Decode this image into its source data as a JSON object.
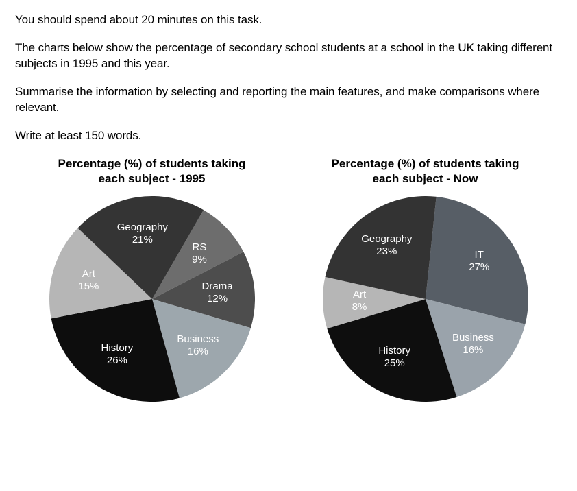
{
  "instructions": {
    "p1": "You should spend about 20 minutes on this task.",
    "p2": "The charts below show the percentage of secondary school students at a school in the UK taking different subjects in 1995 and this year.",
    "p3": "Summarise the information by selecting and reporting the main features, and make comparisons where relevant.",
    "p4": "Write at least 150 words."
  },
  "chart1": {
    "type": "pie",
    "title_line1": "Percentage (%) of students taking",
    "title_line2": "each subject - 1995",
    "radius": 150,
    "start_angle_deg": -60,
    "label_radius_factor": 0.64,
    "background": "#ffffff",
    "label_fontsize": 15,
    "slices": [
      {
        "name": "RS",
        "value": 9,
        "pct": "9%",
        "color": "#6d6d6d",
        "text_color": "#ffffff"
      },
      {
        "name": "Drama",
        "value": 12,
        "pct": "12%",
        "color": "#4d4d4d",
        "text_color": "#ffffff"
      },
      {
        "name": "Business",
        "value": 16,
        "pct": "16%",
        "color": "#9da7ad",
        "text_color": "#ffffff"
      },
      {
        "name": "History",
        "value": 26,
        "pct": "26%",
        "color": "#0d0d0d",
        "text_color": "#ffffff"
      },
      {
        "name": "Art",
        "value": 15,
        "pct": "15%",
        "color": "#b6b6b6",
        "text_color": "#ffffff"
      },
      {
        "name": "Geography",
        "value": 21,
        "pct": "21%",
        "color": "#343434",
        "text_color": "#ffffff"
      }
    ]
  },
  "chart2": {
    "type": "pie",
    "title_line1": "Percentage (%) of students taking",
    "title_line2": "each subject - Now",
    "radius": 150,
    "start_angle_deg": -84,
    "label_radius_factor": 0.64,
    "background": "#ffffff",
    "label_fontsize": 15,
    "slices": [
      {
        "name": "IT",
        "value": 27,
        "pct": "27%",
        "color": "#575e66",
        "text_color": "#ffffff"
      },
      {
        "name": "Business",
        "value": 16,
        "pct": "16%",
        "color": "#9aa3ab",
        "text_color": "#ffffff"
      },
      {
        "name": "History",
        "value": 25,
        "pct": "25%",
        "color": "#0e0e0e",
        "text_color": "#ffffff"
      },
      {
        "name": "Art",
        "value": 8,
        "pct": "8%",
        "color": "#b6b6b6",
        "text_color": "#ffffff"
      },
      {
        "name": "Geography",
        "value": 23,
        "pct": "23%",
        "color": "#333333",
        "text_color": "#ffffff"
      }
    ]
  }
}
